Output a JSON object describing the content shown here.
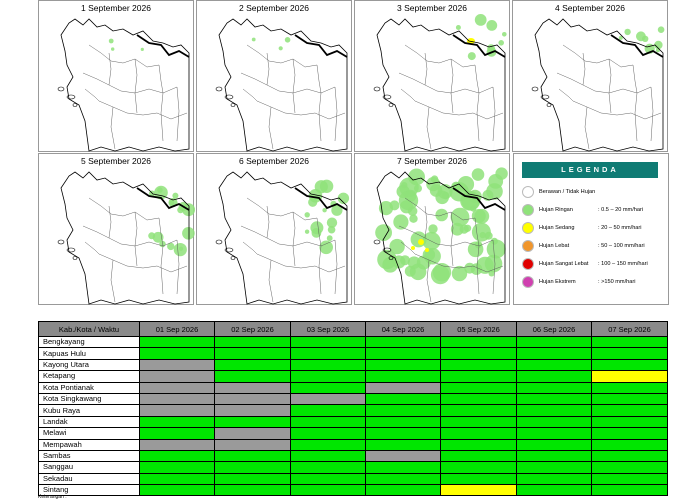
{
  "maps": {
    "dates": [
      "1 September 2026",
      "2 September 2026",
      "3 September 2026",
      "4 September 2026",
      "5 September 2026",
      "6 September 2026",
      "7 September 2026"
    ],
    "fills": [
      {
        "day": 1,
        "light_rain_level": "sparse"
      },
      {
        "day": 2,
        "light_rain_level": "sparse"
      },
      {
        "day": 3,
        "light_rain_level": "scattered",
        "moderate_rain": "small"
      },
      {
        "day": 4,
        "light_rain_level": "scattered"
      },
      {
        "day": 5,
        "light_rain_level": "moderate"
      },
      {
        "day": 6,
        "light_rain_level": "moderate"
      },
      {
        "day": 7,
        "light_rain_level": "widespread",
        "moderate_rain": "patches"
      }
    ]
  },
  "legend": {
    "title": "LEGENDA",
    "items": [
      {
        "name": "Berawan / Tidak Hujan",
        "range": "",
        "color": "#ffffff"
      },
      {
        "name": "Hujan Ringan",
        "range": ": 0.5 – 20 mm/hari",
        "color": "#8fe27a"
      },
      {
        "name": "Hujan Sedang",
        "range": ": 20 – 50 mm/hari",
        "color": "#ffff00"
      },
      {
        "name": "Hujan Lebat",
        "range": ": 50 – 100 mm/hari",
        "color": "#f0962c"
      },
      {
        "name": "Hujan Sangat Lebat",
        "range": ": 100 – 150 mm/hari",
        "color": "#e00000"
      },
      {
        "name": "Hujan Ekstrem",
        "range": ": >150 mm/hari",
        "color": "#d040b0"
      }
    ]
  },
  "table": {
    "header": [
      "Kab./Kota / Waktu",
      "01 Sep 2026",
      "02 Sep 2026",
      "03 Sep 2026",
      "04 Sep 2026",
      "05 Sep 2026",
      "06 Sep 2026",
      "07 Sep 2026"
    ],
    "rows": [
      {
        "name": "Bengkayang",
        "cells": [
          "g",
          "g",
          "g",
          "g",
          "g",
          "g",
          "g"
        ]
      },
      {
        "name": "Kapuas Hulu",
        "cells": [
          "g",
          "g",
          "g",
          "g",
          "g",
          "g",
          "g"
        ]
      },
      {
        "name": "Kayong Utara",
        "cells": [
          "n",
          "g",
          "g",
          "g",
          "g",
          "g",
          "g"
        ]
      },
      {
        "name": "Ketapang",
        "cells": [
          "n",
          "g",
          "g",
          "g",
          "g",
          "g",
          "y"
        ]
      },
      {
        "name": "Kota Pontianak",
        "cells": [
          "n",
          "n",
          "g",
          "n",
          "g",
          "g",
          "g"
        ]
      },
      {
        "name": "Kota Singkawang",
        "cells": [
          "n",
          "n",
          "n",
          "g",
          "g",
          "g",
          "g"
        ]
      },
      {
        "name": "Kubu Raya",
        "cells": [
          "n",
          "n",
          "g",
          "g",
          "g",
          "g",
          "g"
        ]
      },
      {
        "name": "Landak",
        "cells": [
          "g",
          "g",
          "g",
          "g",
          "g",
          "g",
          "g"
        ]
      },
      {
        "name": "Melawi",
        "cells": [
          "g",
          "n",
          "g",
          "g",
          "g",
          "g",
          "g"
        ]
      },
      {
        "name": "Mempawah",
        "cells": [
          "n",
          "n",
          "g",
          "g",
          "g",
          "g",
          "g"
        ]
      },
      {
        "name": "Sambas",
        "cells": [
          "g",
          "g",
          "g",
          "n",
          "g",
          "g",
          "g"
        ]
      },
      {
        "name": "Sanggau",
        "cells": [
          "g",
          "g",
          "g",
          "g",
          "g",
          "g",
          "g"
        ]
      },
      {
        "name": "Sekadau",
        "cells": [
          "g",
          "g",
          "g",
          "g",
          "g",
          "g",
          "g"
        ]
      },
      {
        "name": "Sintang",
        "cells": [
          "g",
          "g",
          "g",
          "g",
          "y",
          "g",
          "g"
        ]
      }
    ],
    "footnote": "Keterangan :"
  },
  "colors": {
    "g": "#00e600",
    "n": "#9a9a9a",
    "y": "#ffff00"
  }
}
